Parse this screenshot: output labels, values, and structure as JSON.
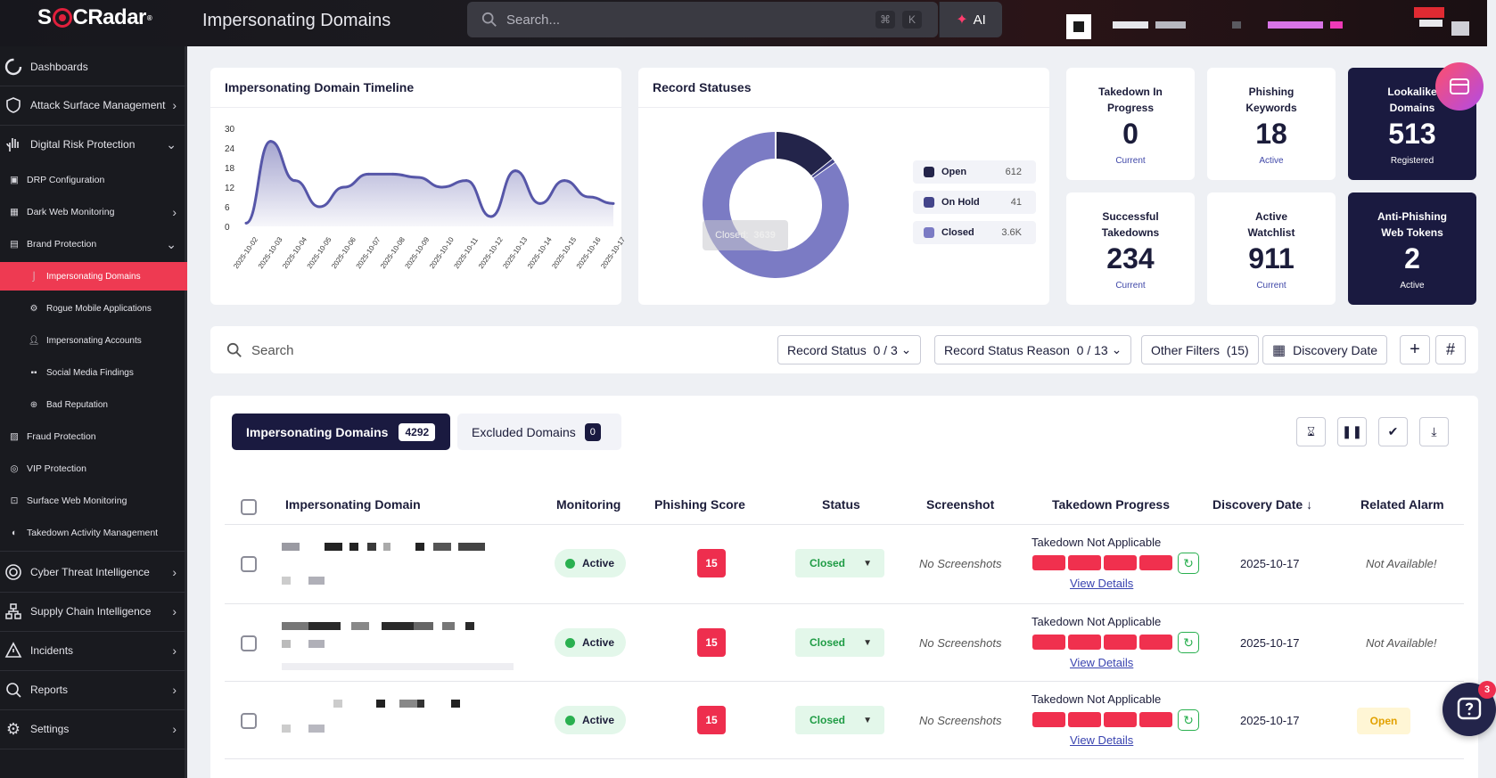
{
  "brand": {
    "logo_text_1": "S",
    "logo_text_2": "CRadar",
    "logo_mark": "®"
  },
  "header": {
    "title": "Impersonating Domains",
    "search_placeholder": "Search...",
    "shortcut_1": "⌘",
    "shortcut_2": "K",
    "ai_label": "AI"
  },
  "sidebar": {
    "dashboards": "Dashboards",
    "asm": "Attack Surface Management",
    "drp": "Digital Risk Protection",
    "drp_config": "DRP Configuration",
    "dark_web": "Dark Web Monitoring",
    "brand_protection": "Brand Protection",
    "impersonating_domains": "Impersonating Domains",
    "rogue_mobile": "Rogue Mobile Applications",
    "impersonating_accounts": "Impersonating Accounts",
    "social_media": "Social Media Findings",
    "bad_reputation": "Bad Reputation",
    "fraud_protection": "Fraud Protection",
    "vip_protection": "VIP Protection",
    "surface_web": "Surface Web Monitoring",
    "takedown_activity": "Takedown Activity Management",
    "cti": "Cyber Threat Intelligence",
    "supply_chain": "Supply Chain Intelligence",
    "incidents": "Incidents",
    "reports": "Reports",
    "settings": "Settings"
  },
  "timeline": {
    "title": "Impersonating Domain Timeline",
    "chart_data": {
      "type": "area",
      "yticks": [
        "30",
        "24",
        "18",
        "12",
        "6",
        "0"
      ],
      "ylim": [
        0,
        30
      ],
      "x": [
        "2025-10-02",
        "2025-10-03",
        "2025-10-04",
        "2025-10-05",
        "2025-10-06",
        "2025-10-07",
        "2025-10-08",
        "2025-10-09",
        "2025-10-10",
        "2025-10-11",
        "2025-10-12",
        "2025-10-13",
        "2025-10-14",
        "2025-10-15",
        "2025-10-16",
        "2025-10-17"
      ],
      "values": [
        1,
        26,
        14,
        6,
        12,
        16,
        16,
        15,
        12,
        14,
        3,
        17,
        7,
        14,
        9,
        7
      ]
    }
  },
  "record_statuses": {
    "title": "Record Statuses",
    "tooltip_label": "Closed:",
    "tooltip_value": "3639",
    "chart_data": {
      "type": "pie",
      "labels": [
        "Open",
        "On Hold",
        "Closed"
      ],
      "values": [
        612,
        41,
        3639
      ],
      "colors": [
        "#23244a",
        "#43448a",
        "#7b7bc4"
      ]
    },
    "legend": [
      {
        "label": "Open",
        "value": "612",
        "color": "#23244a"
      },
      {
        "label": "On Hold",
        "value": "41",
        "color": "#43448a"
      },
      {
        "label": "Closed",
        "value": "3.6K",
        "color": "#7b7bc4"
      }
    ]
  },
  "stats": {
    "takedown_in_progress": {
      "title_1": "Takedown In",
      "title_2": "Progress",
      "value": "0",
      "sub": "Current"
    },
    "phishing_keywords": {
      "title_1": "Phishing",
      "title_2": "Keywords",
      "value": "18",
      "sub": "Active"
    },
    "lookalike_domains": {
      "title_1": "Lookalike",
      "title_2": "Domains",
      "value": "513",
      "sub": "Registered"
    },
    "successful_takedowns": {
      "title_1": "Successful",
      "title_2": "Takedowns",
      "value": "234",
      "sub": "Current"
    },
    "active_watchlist": {
      "title_1": "Active",
      "title_2": "Watchlist",
      "value": "911",
      "sub": "Current"
    },
    "anti_phishing_tokens": {
      "title_1": "Anti-Phishing",
      "title_2": "Web Tokens",
      "value": "2",
      "sub": "Active"
    }
  },
  "filters": {
    "search_placeholder": "Search",
    "record_status": "Record Status",
    "record_status_count": "0 / 3",
    "record_status_reason": "Record Status Reason",
    "record_status_reason_count": "0 / 13",
    "other_filters": "Other Filters",
    "other_filters_count": "(15)",
    "discovery_date": "Discovery Date"
  },
  "tabs": {
    "impersonating": "Impersonating Domains",
    "impersonating_count": "4292",
    "excluded": "Excluded Domains",
    "excluded_count": "0"
  },
  "table": {
    "columns": [
      "Impersonating Domain",
      "Monitoring",
      "Phishing Score",
      "Status",
      "Screenshot",
      "Takedown Progress",
      "Discovery Date",
      "Related Alarm"
    ],
    "rows": [
      {
        "monitoring": "Active",
        "score": "15",
        "status": "Closed",
        "screenshot": "No Screenshots",
        "takedown": "Takedown Not Applicable",
        "view": "View Details",
        "date": "2025-10-17",
        "alarm": "Not Available!"
      },
      {
        "monitoring": "Active",
        "score": "15",
        "status": "Closed",
        "screenshot": "No Screenshots",
        "takedown": "Takedown Not Applicable",
        "view": "View Details",
        "date": "2025-10-17",
        "alarm": "Not Available!"
      },
      {
        "monitoring": "Active",
        "score": "15",
        "status": "Closed",
        "screenshot": "No Screenshots",
        "takedown": "Takedown Not Applicable",
        "view": "View Details",
        "date": "2025-10-17",
        "alarm": "Open"
      }
    ]
  },
  "chat": {
    "notifications": "3"
  }
}
